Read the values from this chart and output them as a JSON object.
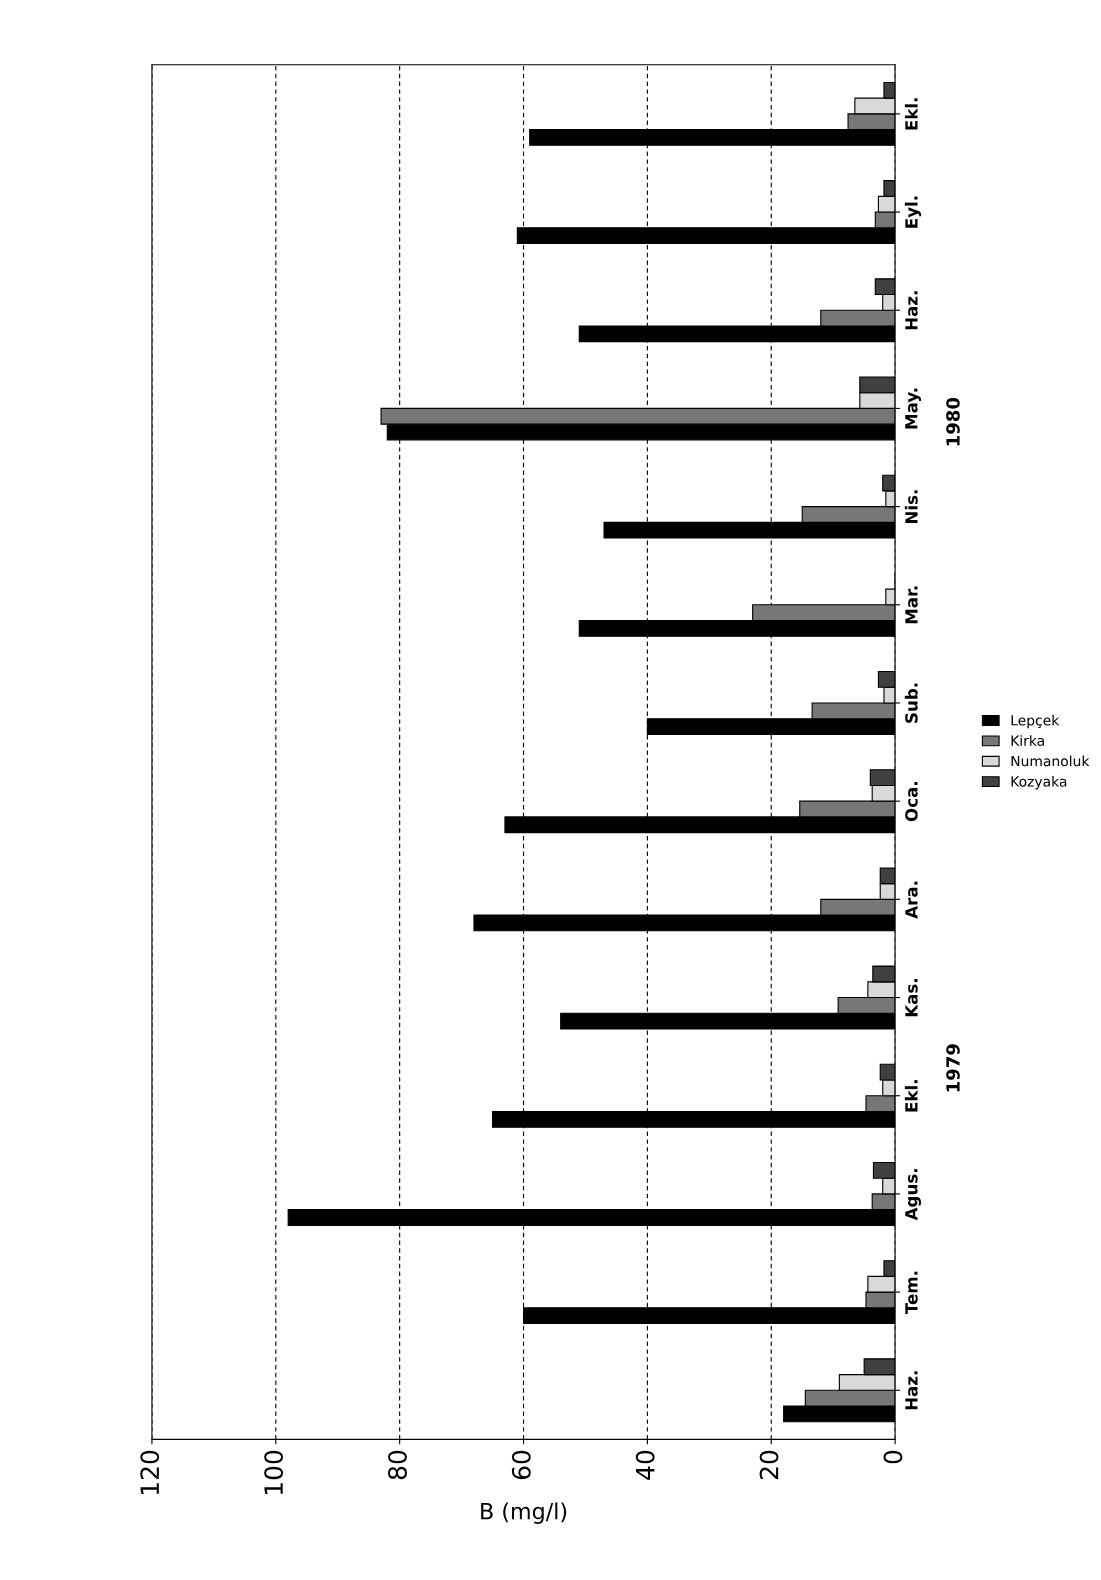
{
  "chart_data": {
    "type": "bar",
    "orientation": "horizontal",
    "xlabel": "B (mg/l)",
    "categories": [
      "Ekl.",
      "Eyl.",
      "Haz.",
      "May.",
      "Nis.",
      "Mar.",
      "Sub.",
      "Oca.",
      "Ara.",
      "Kas.",
      "Ekl.",
      "Agus.",
      "Tem.",
      "Haz."
    ],
    "series": [
      {
        "name": "Lepçek",
        "color": "#000000",
        "values": [
          59,
          61,
          51,
          82,
          47,
          51,
          40,
          63,
          68,
          54,
          65,
          98,
          60,
          18
        ]
      },
      {
        "name": "Kirka",
        "color": "#777777",
        "values": [
          7.6,
          3.2,
          12,
          83,
          15,
          23,
          13.4,
          15.4,
          12,
          9.2,
          4.7,
          3.7,
          4.7,
          14.5
        ]
      },
      {
        "name": "Numanoluk",
        "color": "#d9d9d9",
        "values": [
          6.5,
          2.7,
          2,
          5.7,
          1.5,
          1.5,
          1.8,
          3.7,
          2.4,
          4.4,
          2,
          2,
          4.4,
          9
        ]
      },
      {
        "name": "Kozyaka",
        "color": "#404040",
        "values": [
          1.8,
          1.8,
          3.2,
          5.7,
          2,
          0,
          2.7,
          4,
          2.4,
          3.6,
          2.4,
          3.5,
          1.8,
          5
        ]
      }
    ],
    "xlim": [
      120,
      0
    ],
    "xticks": [
      0,
      20,
      40,
      60,
      80,
      100,
      120
    ],
    "grid": "x",
    "legend": "right",
    "annotations": [
      "1979",
      "1980"
    ]
  }
}
